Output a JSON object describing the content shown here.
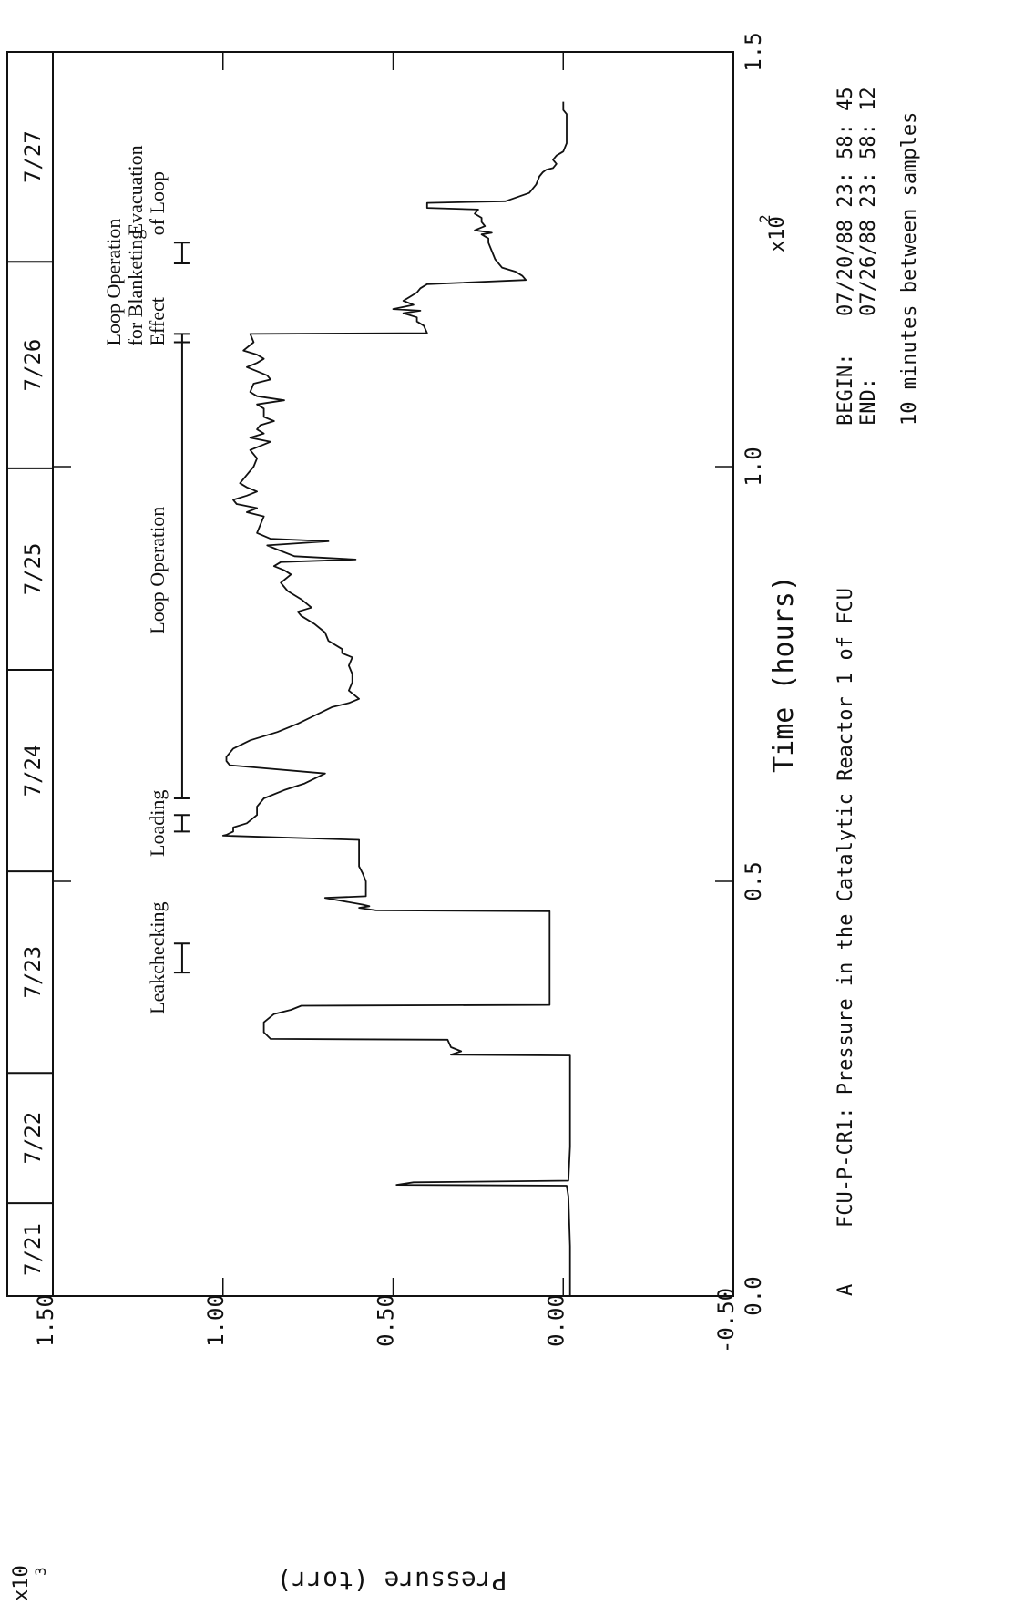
{
  "chart_data": {
    "type": "line",
    "title": "FCU-P-CR1: Pressure in the Catalytic Reactor 1 of FCU",
    "panel_label": "A",
    "xlabel": "Time (hours)",
    "x_multiplier": "x10",
    "x_multiplier_exp": "2",
    "xlim": [
      0.0,
      1.5
    ],
    "x_ticks": [
      "0.0",
      "0.5",
      "1.0",
      "1.5"
    ],
    "ylabel": "Pressure (torr)",
    "y_multiplier": "x10",
    "y_multiplier_exp": "3",
    "ylim": [
      -0.5,
      1.5
    ],
    "y_ticks": [
      "-0.50",
      "0.00",
      "0.50",
      "1.00",
      "1.50"
    ],
    "dates": [
      {
        "label": "7/21",
        "start": 0.0,
        "end": 0.112
      },
      {
        "label": "7/22",
        "start": 0.112,
        "end": 0.269
      },
      {
        "label": "7/23",
        "start": 0.269,
        "end": 0.512
      },
      {
        "label": "7/24",
        "start": 0.512,
        "end": 0.755
      },
      {
        "label": "7/25",
        "start": 0.755,
        "end": 0.998
      },
      {
        "label": "7/26",
        "start": 0.998,
        "end": 1.247
      },
      {
        "label": "7/27",
        "start": 1.247,
        "end": 1.5
      }
    ],
    "begin_label": "BEGIN:",
    "begin_value": "07/20/88 23: 58: 45",
    "end_label": "END:",
    "end_value": "07/26/88 23: 58: 12",
    "sampling_note": "10 minutes between samples",
    "annotations": [
      {
        "text": "Leakchecking",
        "x0": 0.39,
        "x1": 0.425
      },
      {
        "text": "Loading",
        "x0": 0.56,
        "x1": 0.58
      },
      {
        "text": "Loop Operation",
        "x0": 0.6,
        "x1": 1.15
      },
      {
        "text": "Loop Operation for Blanketing Effect",
        "x0": 1.15,
        "x1": 1.16
      },
      {
        "text": "Evacuation of Loop",
        "x0": 1.245,
        "x1": 1.27
      }
    ],
    "series": [
      {
        "points": [
          [
            0.0,
            -0.02
          ],
          [
            0.06,
            -0.02
          ],
          [
            0.12,
            -0.015
          ],
          [
            0.133,
            -0.01
          ],
          [
            0.134,
            0.49
          ],
          [
            0.137,
            0.44
          ],
          [
            0.139,
            -0.015
          ],
          [
            0.18,
            -0.02
          ],
          [
            0.25,
            -0.02
          ],
          [
            0.26,
            -0.02
          ],
          [
            0.285,
            -0.02
          ],
          [
            0.29,
            -0.02
          ],
          [
            0.291,
            0.33
          ],
          [
            0.295,
            0.3
          ],
          [
            0.3,
            0.33
          ],
          [
            0.309,
            0.34
          ],
          [
            0.31,
            0.86
          ],
          [
            0.318,
            0.88
          ],
          [
            0.33,
            0.88
          ],
          [
            0.34,
            0.85
          ],
          [
            0.345,
            0.8
          ],
          [
            0.35,
            0.77
          ],
          [
            0.351,
            0.04
          ],
          [
            0.4,
            0.04
          ],
          [
            0.46,
            0.04
          ],
          [
            0.464,
            0.04
          ],
          [
            0.465,
            0.55
          ],
          [
            0.468,
            0.6
          ],
          [
            0.47,
            0.57
          ],
          [
            0.472,
            0.59
          ],
          [
            0.48,
            0.7
          ],
          [
            0.482,
            0.58
          ],
          [
            0.49,
            0.58
          ],
          [
            0.5,
            0.58
          ],
          [
            0.51,
            0.59
          ],
          [
            0.518,
            0.6
          ],
          [
            0.53,
            0.6
          ],
          [
            0.55,
            0.6
          ],
          [
            0.555,
            1.0
          ],
          [
            0.556,
            0.99
          ],
          [
            0.56,
            0.97
          ],
          [
            0.565,
            0.97
          ],
          [
            0.57,
            0.93
          ],
          [
            0.58,
            0.9
          ],
          [
            0.59,
            0.9
          ],
          [
            0.6,
            0.88
          ],
          [
            0.61,
            0.82
          ],
          [
            0.618,
            0.76
          ],
          [
            0.63,
            0.7
          ],
          [
            0.64,
            0.98
          ],
          [
            0.645,
            0.99
          ],
          [
            0.65,
            0.99
          ],
          [
            0.66,
            0.97
          ],
          [
            0.67,
            0.92
          ],
          [
            0.68,
            0.84
          ],
          [
            0.69,
            0.78
          ],
          [
            0.7,
            0.73
          ],
          [
            0.71,
            0.68
          ],
          [
            0.715,
            0.63
          ],
          [
            0.72,
            0.6
          ],
          [
            0.73,
            0.63
          ],
          [
            0.74,
            0.62
          ],
          [
            0.75,
            0.62
          ],
          [
            0.76,
            0.63
          ],
          [
            0.77,
            0.62
          ],
          [
            0.775,
            0.65
          ],
          [
            0.78,
            0.65
          ],
          [
            0.79,
            0.69
          ],
          [
            0.8,
            0.7
          ],
          [
            0.81,
            0.73
          ],
          [
            0.82,
            0.77
          ],
          [
            0.825,
            0.78
          ],
          [
            0.83,
            0.74
          ],
          [
            0.84,
            0.77
          ],
          [
            0.85,
            0.81
          ],
          [
            0.86,
            0.83
          ],
          [
            0.87,
            0.8
          ],
          [
            0.875,
            0.82
          ],
          [
            0.88,
            0.85
          ],
          [
            0.885,
            0.83
          ],
          [
            0.888,
            0.61
          ],
          [
            0.892,
            0.79
          ],
          [
            0.9,
            0.84
          ],
          [
            0.905,
            0.87
          ],
          [
            0.91,
            0.69
          ],
          [
            0.913,
            0.86
          ],
          [
            0.92,
            0.9
          ],
          [
            0.93,
            0.89
          ],
          [
            0.94,
            0.88
          ],
          [
            0.945,
            0.93
          ],
          [
            0.95,
            0.9
          ],
          [
            0.955,
            0.96
          ],
          [
            0.96,
            0.97
          ],
          [
            0.965,
            0.93
          ],
          [
            0.97,
            0.9
          ],
          [
            0.975,
            0.93
          ],
          [
            0.98,
            0.95
          ],
          [
            0.99,
            0.93
          ],
          [
            1.0,
            0.91
          ],
          [
            1.01,
            0.9
          ],
          [
            1.02,
            0.92
          ],
          [
            1.03,
            0.86
          ],
          [
            1.035,
            0.92
          ],
          [
            1.04,
            0.88
          ],
          [
            1.045,
            0.9
          ],
          [
            1.05,
            0.89
          ],
          [
            1.055,
            0.85
          ],
          [
            1.06,
            0.88
          ],
          [
            1.07,
            0.88
          ],
          [
            1.075,
            0.9
          ],
          [
            1.08,
            0.82
          ],
          [
            1.085,
            0.9
          ],
          [
            1.09,
            0.92
          ],
          [
            1.1,
            0.91
          ],
          [
            1.105,
            0.86
          ],
          [
            1.11,
            0.87
          ],
          [
            1.115,
            0.9
          ],
          [
            1.12,
            0.93
          ],
          [
            1.125,
            0.9
          ],
          [
            1.13,
            0.88
          ],
          [
            1.135,
            0.9
          ],
          [
            1.14,
            0.94
          ],
          [
            1.15,
            0.91
          ],
          [
            1.16,
            0.92
          ],
          [
            1.161,
            0.4
          ],
          [
            1.17,
            0.41
          ],
          [
            1.175,
            0.43
          ],
          [
            1.18,
            0.43
          ],
          [
            1.185,
            0.47
          ],
          [
            1.188,
            0.42
          ],
          [
            1.19,
            0.5
          ],
          [
            1.195,
            0.44
          ],
          [
            1.2,
            0.47
          ],
          [
            1.205,
            0.45
          ],
          [
            1.21,
            0.43
          ],
          [
            1.215,
            0.42
          ],
          [
            1.22,
            0.4
          ],
          [
            1.225,
            0.11
          ],
          [
            1.23,
            0.12
          ],
          [
            1.235,
            0.14
          ],
          [
            1.24,
            0.18
          ],
          [
            1.25,
            0.2
          ],
          [
            1.26,
            0.21
          ],
          [
            1.27,
            0.22
          ],
          [
            1.275,
            0.22
          ],
          [
            1.28,
            0.24
          ],
          [
            1.282,
            0.21
          ],
          [
            1.285,
            0.26
          ],
          [
            1.29,
            0.23
          ],
          [
            1.295,
            0.24
          ],
          [
            1.3,
            0.24
          ],
          [
            1.305,
            0.26
          ],
          [
            1.31,
            0.25
          ],
          [
            1.312,
            0.4
          ],
          [
            1.318,
            0.4
          ],
          [
            1.32,
            0.17
          ],
          [
            1.33,
            0.1
          ],
          [
            1.34,
            0.08
          ],
          [
            1.35,
            0.07
          ],
          [
            1.355,
            0.06
          ],
          [
            1.358,
            0.05
          ],
          [
            1.36,
            0.03
          ],
          [
            1.365,
            0.02
          ],
          [
            1.37,
            0.03
          ],
          [
            1.375,
            0.02
          ],
          [
            1.38,
            0.0
          ],
          [
            1.39,
            -0.01
          ],
          [
            1.4,
            -0.01
          ],
          [
            1.41,
            -0.01
          ],
          [
            1.415,
            -0.01
          ],
          [
            1.42,
            -0.01
          ],
          [
            1.425,
            -0.01
          ],
          [
            1.43,
            0.0
          ],
          [
            1.435,
            0.0
          ],
          [
            1.44,
            0.0
          ]
        ]
      }
    ]
  }
}
